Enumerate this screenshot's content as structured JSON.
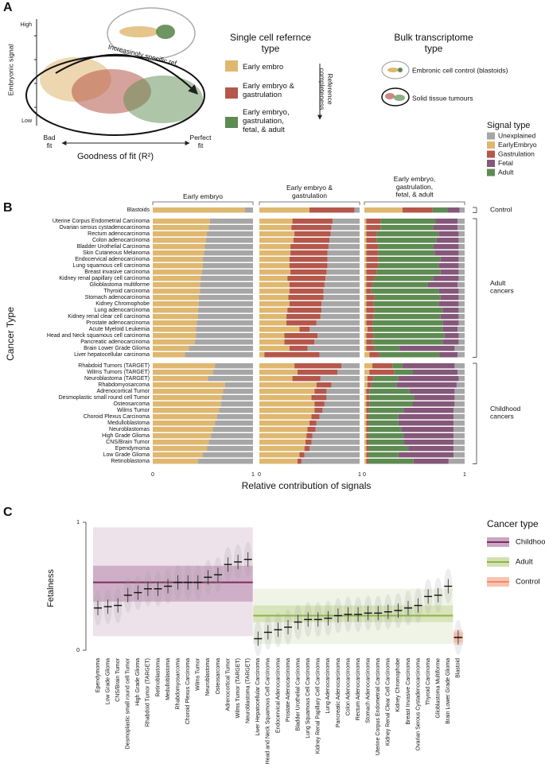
{
  "panel_a": {
    "label": "A",
    "y_label": "Embryonic signal",
    "y_high": "High",
    "y_low": "Low",
    "arrow_label": "Increasingly specific ref.",
    "x_left": "Bad fit",
    "x_right": "Perfect fit",
    "x_label": "Goodness of fit (R²)",
    "reference_title": "Single cell refernce type",
    "references": [
      {
        "label": "Early embro",
        "color": "#dfb76f"
      },
      {
        "label": "Early embryo & gastrulation",
        "color": "#b5574b"
      },
      {
        "label": "Early embryo, gastrulation, fetal, & adult",
        "color": "#5e8b52"
      }
    ],
    "completeness_label": "Reference completeness",
    "bulk_title": "Bulk transcriptome type",
    "bulk_types": [
      "Embronic cell control (blastoids)",
      "Solid tissue tumours"
    ]
  },
  "chart_data": [
    {
      "type": "stacked-bar",
      "label": "B",
      "x_label": "Relative contribution of signals",
      "y_label": "Cancer Type",
      "xlim": [
        0,
        1
      ],
      "xticks": [
        0,
        1
      ],
      "legend_title": "Signal type",
      "series": [
        {
          "name": "Unexplained",
          "color": "#a6a6a6"
        },
        {
          "name": "EarlyEmbryo",
          "color": "#dfb76f"
        },
        {
          "name": "Gastrulation",
          "color": "#b5574b"
        },
        {
          "name": "Fetal",
          "color": "#85577a"
        },
        {
          "name": "Adult",
          "color": "#5e8b52"
        }
      ],
      "groups": [
        {
          "label": "Control",
          "categories": [
            "Blastoids"
          ]
        },
        {
          "label": "Adult cancers",
          "categories": [
            "Uterine Corpus Endometrial Carcinoma",
            "Ovarian serous cystadenocarcinoma",
            "Rectum adenocarcinoma",
            "Colon adenocarcinoma",
            "Bladder Urothelial Carcinoma",
            "Skin Cutaneous Melanoma",
            "Endocervical adenocarcinoma",
            "Lung squamous cell carcinoma",
            "Breast invasive carcinoma",
            "Kidney renal papillary cell carcinoma",
            "Glioblastoma multiforme",
            "Thyroid carcinoma",
            "Stomach adenocarcinoma",
            "Kidney Chromophobe",
            "Lung adenocarcinoma",
            "Kidney renal clear cell carcinoma",
            "Prostate adenocarcinoma",
            "Acute Myeloid Leukemia",
            "Head and Neck squamous cell carcinoma",
            "Pancreatic adenocarcinoma",
            "Brain Lower Grade Glioma",
            "Liver hepatocellular carcinoma"
          ]
        },
        {
          "label": "Childhood cancers",
          "categories": [
            "Rhabdoid Tumors (TARGET)",
            "Wilms Tumors (TARGET)",
            "Neuroblastoma (TARGET)",
            "Rhabdomyosarcoma",
            "Adrenocortical Tumor",
            "Desmoplastic small round cell Tumor",
            "Osteosarcoma",
            "Wilms Tumor",
            "Choroid Plexus Carcinoma",
            "Medulloblastoma",
            "Neuroblastomas",
            "High Grade Glioma",
            "CNS/Brain Tumor",
            "Ependymoma",
            "Low Grade Glioma",
            "Retinoblastoma"
          ]
        }
      ],
      "panels": [
        {
          "title": "Early embryo",
          "values": [
            [
              0.08,
              0.43,
              0.44,
              0.46,
              0.47,
              0.48,
              0.49,
              0.5,
              0.5,
              0.51,
              0.52,
              0.53,
              0.53,
              0.54,
              0.54,
              0.55,
              0.55,
              0.56,
              0.57,
              0.57,
              0.58,
              0.64,
              0.68,
              0.38,
              0.4,
              0.45,
              0.28,
              0.3,
              0.31,
              0.32,
              0.34,
              0.36,
              0.38,
              0.4,
              0.42,
              0.44,
              0.46,
              0.5,
              0.55
            ],
            [
              0.92,
              0.57,
              0.56,
              0.54,
              0.53,
              0.52,
              0.51,
              0.5,
              0.5,
              0.49,
              0.48,
              0.47,
              0.47,
              0.46,
              0.46,
              0.45,
              0.45,
              0.44,
              0.43,
              0.43,
              0.42,
              0.36,
              0.32,
              0.62,
              0.6,
              0.55,
              0.72,
              0.7,
              0.69,
              0.68,
              0.66,
              0.64,
              0.62,
              0.6,
              0.58,
              0.56,
              0.54,
              0.5,
              0.45
            ],
            null,
            null,
            null
          ]
        },
        {
          "title": "Early embryo & gastrulation",
          "values": [
            [
              0.05,
              0.27,
              0.28,
              0.29,
              0.3,
              0.31,
              0.32,
              0.32,
              0.32,
              0.33,
              0.34,
              0.35,
              0.36,
              0.36,
              0.38,
              0.38,
              0.39,
              0.43,
              0.5,
              0.42,
              0.45,
              0.52,
              0.4,
              0.18,
              0.22,
              0.39,
              0.28,
              0.33,
              0.33,
              0.35,
              0.37,
              0.4,
              0.43,
              0.44,
              0.47,
              0.48,
              0.5,
              0.55,
              0.58
            ],
            [
              0.5,
              0.33,
              0.32,
              0.35,
              0.34,
              0.31,
              0.31,
              0.3,
              0.3,
              0.31,
              0.28,
              0.3,
              0.3,
              0.29,
              0.3,
              0.28,
              0.27,
              0.27,
              0.4,
              0.25,
              0.25,
              0.3,
              0.05,
              0.35,
              0.38,
              0.33,
              0.57,
              0.55,
              0.52,
              0.55,
              0.55,
              0.52,
              0.5,
              0.48,
              0.47,
              0.46,
              0.45,
              0.4,
              0.38
            ],
            [
              0.45,
              0.4,
              0.4,
              0.36,
              0.36,
              0.38,
              0.37,
              0.38,
              0.38,
              0.36,
              0.38,
              0.35,
              0.34,
              0.35,
              0.32,
              0.34,
              0.34,
              0.3,
              0.1,
              0.33,
              0.3,
              0.18,
              0.55,
              0.47,
              0.4,
              0.28,
              0.15,
              0.12,
              0.15,
              0.1,
              0.08,
              0.08,
              0.07,
              0.08,
              0.06,
              0.06,
              0.05,
              0.05,
              0.04
            ],
            null,
            null
          ]
        },
        {
          "title": "Early embryo, gastrulation, fetal, & adult",
          "values": [
            [
              0.05,
              0.07,
              0.07,
              0.06,
              0.06,
              0.06,
              0.06,
              0.06,
              0.06,
              0.06,
              0.06,
              0.07,
              0.06,
              0.06,
              0.06,
              0.06,
              0.06,
              0.06,
              0.07,
              0.06,
              0.06,
              0.1,
              0.07,
              0.1,
              0.07,
              0.06,
              0.08,
              0.1,
              0.1,
              0.1,
              0.11,
              0.11,
              0.11,
              0.11,
              0.11,
              0.11,
              0.11,
              0.11,
              0.16
            ],
            [
              0.38,
              0.02,
              0.02,
              0.02,
              0.02,
              0.02,
              0.02,
              0.02,
              0.02,
              0.02,
              0.02,
              0.02,
              0.02,
              0.02,
              0.02,
              0.02,
              0.02,
              0.02,
              0.03,
              0.02,
              0.02,
              0.02,
              0.05,
              0.08,
              0.05,
              0.03,
              0.03,
              0.02,
              0.02,
              0.02,
              0.02,
              0.02,
              0.02,
              0.02,
              0.02,
              0.02,
              0.02,
              0.02,
              0.02
            ],
            [
              0.3,
              0.14,
              0.14,
              0.1,
              0.1,
              0.12,
              0.12,
              0.12,
              0.12,
              0.1,
              0.08,
              0.06,
              0.05,
              0.08,
              0.07,
              0.08,
              0.07,
              0.06,
              0.05,
              0.07,
              0.06,
              0.08,
              0.1,
              0.2,
              0.25,
              0.06,
              0.04,
              0.03,
              0.03,
              0.03,
              0.02,
              0.02,
              0.02,
              0.02,
              0.02,
              0.02,
              0.02,
              0.02,
              0.02
            ],
            [
              0.12,
              0.22,
              0.24,
              0.2,
              0.22,
              0.25,
              0.24,
              0.18,
              0.2,
              0.18,
              0.25,
              0.3,
              0.2,
              0.18,
              0.2,
              0.16,
              0.18,
              0.16,
              0.15,
              0.14,
              0.16,
              0.55,
              0.18,
              0.52,
              0.45,
              0.6,
              0.6,
              0.45,
              0.4,
              0.42,
              0.5,
              0.55,
              0.55,
              0.52,
              0.5,
              0.5,
              0.45,
              0.55,
              0.35
            ],
            [
              0.15,
              0.55,
              0.53,
              0.62,
              0.6,
              0.55,
              0.56,
              0.62,
              0.6,
              0.64,
              0.59,
              0.55,
              0.67,
              0.66,
              0.65,
              0.68,
              0.67,
              0.7,
              0.7,
              0.71,
              0.7,
              0.25,
              0.6,
              0.1,
              0.18,
              0.25,
              0.25,
              0.4,
              0.45,
              0.43,
              0.35,
              0.3,
              0.3,
              0.33,
              0.35,
              0.35,
              0.4,
              0.3,
              0.45
            ]
          ]
        }
      ]
    },
    {
      "type": "strip",
      "label": "C",
      "y_label": "Fetalness",
      "ylim": [
        0,
        1
      ],
      "yticks": [
        0,
        1
      ],
      "legend_title": "Cancer type",
      "series": [
        {
          "name": "Childhood",
          "color": "#7b2d5f",
          "band_color": "#c9a6c1",
          "range_color": "#ede1ea",
          "mean": 0.53,
          "band": [
            0.38,
            0.66
          ],
          "range": [
            0.11,
            0.96
          ],
          "categories": [
            "Ependymoma",
            "Low Grade Glioma",
            "CNS/Brain Tumor",
            "Desmoplastic small round cell Tumor",
            "High Grade Glioma",
            "Rhabdoid Tumor (TARGET)",
            "Retinoblastoma",
            "Medulloblastoma",
            "Rhabdomyosarcoma",
            "Choroid Plexus Carcinoma",
            "Wilms Tumor",
            "Neuroblastoma",
            "Osteosarcoma",
            "Adrenocortical Tumor",
            "Wilms Tumor (TARGET)",
            "Neuroblastoma (TARGET)"
          ],
          "values": [
            0.33,
            0.34,
            0.35,
            0.43,
            0.45,
            0.48,
            0.48,
            0.5,
            0.53,
            0.53,
            0.53,
            0.57,
            0.59,
            0.67,
            0.69,
            0.71
          ]
        },
        {
          "name": "Adult",
          "color": "#8db443",
          "band_color": "#d3e0b3",
          "range_color": "#f0f4e6",
          "mean": 0.27,
          "band": [
            0.22,
            0.35
          ],
          "range": [
            0.05,
            0.48
          ],
          "categories": [
            "Liver Hepatocellular Carcinoma",
            "Head and Neck Squamous Cell Carcinoma",
            "Endocervical Adenocarcinoma",
            "Prostate Adenocarcinoma",
            "Bladder Urothelial Carcinoma",
            "Lung Squamous Cell Carcinoma",
            "Kidney Renal Papillary Cell Carcinoma",
            "Lung Adenocarcinoma",
            "Pancreatic Adenocarcinoma",
            "Colon Adenocarcinoma",
            "Rectum Adenocarcinoma",
            "Stomach Adenocarcinoma",
            "Uterine Corpus Endometrial Carcinoma",
            "Kidney Renal Clear Cell Carcinoma",
            "Kidney Chromophobe",
            "Breast Invasive Carcinoma",
            "Ovarian Serous Cystadenocarcinoma",
            "Thyroid Carcinoma",
            "Glioblastoma Multiforme",
            "Brain Lower Grade Glioma"
          ],
          "values": [
            0.09,
            0.14,
            0.16,
            0.18,
            0.22,
            0.24,
            0.24,
            0.25,
            0.27,
            0.28,
            0.28,
            0.29,
            0.29,
            0.3,
            0.31,
            0.33,
            0.35,
            0.42,
            0.43,
            0.5
          ]
        },
        {
          "name": "Control",
          "color": "#f28a6a",
          "band_color": "#f9c3b1",
          "range_color": "#fde6de",
          "mean": 0.1,
          "band": [
            0.06,
            0.14
          ],
          "range": [
            0.04,
            0.16
          ],
          "categories": [
            "Blastoid"
          ],
          "values": [
            0.1
          ]
        }
      ]
    }
  ]
}
